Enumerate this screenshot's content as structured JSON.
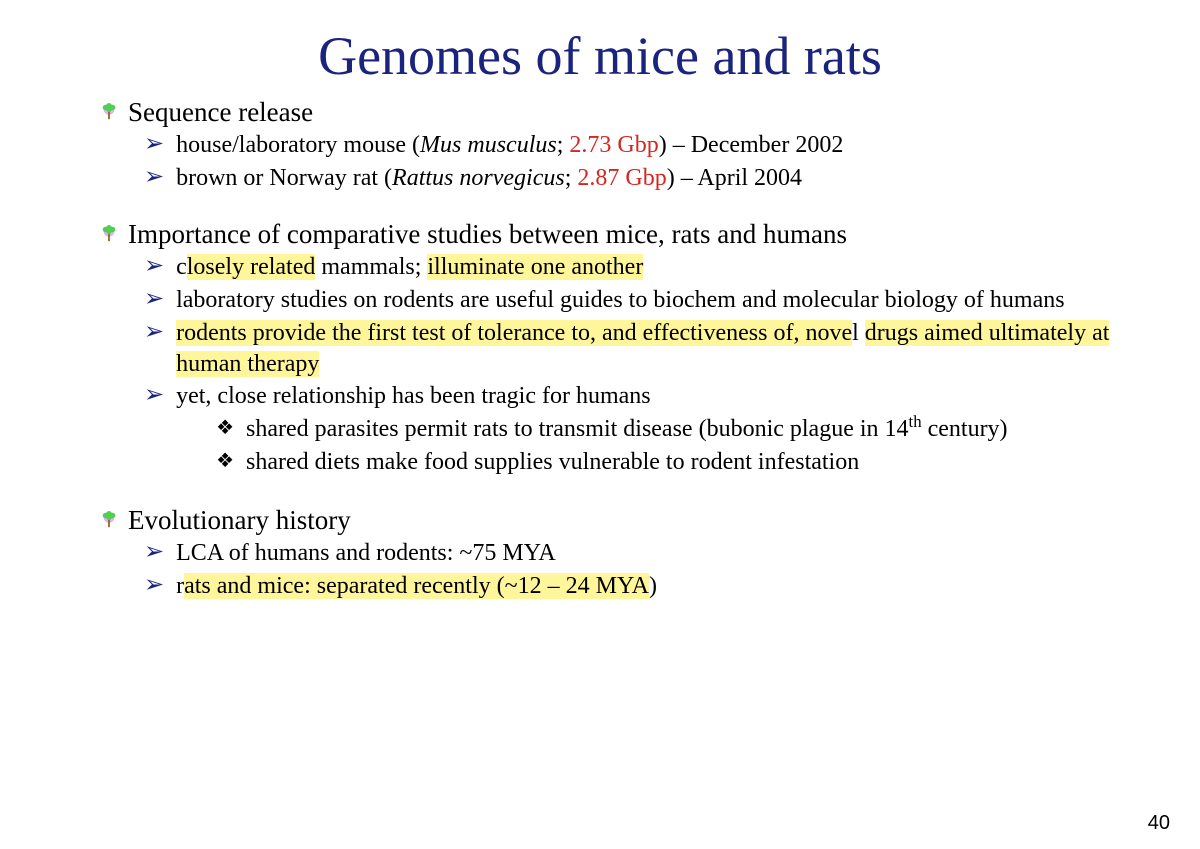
{
  "colors": {
    "title": "#1a237e",
    "chevron": "#1a237e",
    "bullet_top": "#4fd04f",
    "bullet_glow": "#c080ff",
    "bullet_stem": "#a06020",
    "red": "#d7261f",
    "highlight": "#fff59a",
    "background": "#ffffff"
  },
  "typography": {
    "title_fontsize": 54,
    "heading_fontsize": 27,
    "body_fontsize": 24,
    "page_num_fontsize": 20,
    "font_family": "Comic Sans MS"
  },
  "title": "Genomes of mice and rats",
  "sections": [
    {
      "heading": "Sequence release",
      "items": [
        {
          "kind": "line",
          "segments": [
            {
              "t": "house/laboratory mouse ("
            },
            {
              "t": "Mus musculus",
              "italic": true
            },
            {
              "t": "; "
            },
            {
              "t": "2.73 Gbp",
              "red": true
            },
            {
              "t": ") – December 2002"
            }
          ]
        },
        {
          "kind": "line",
          "segments": [
            {
              "t": "brown or Norway rat ("
            },
            {
              "t": "Rattus norvegicus",
              "italic": true
            },
            {
              "t": "; "
            },
            {
              "t": "2.87 Gbp",
              "red": true
            },
            {
              "t": ") – April 2004"
            }
          ]
        }
      ]
    },
    {
      "heading": "Importance of comparative studies between mice, rats and humans",
      "items": [
        {
          "kind": "line",
          "segments": [
            {
              "t": "c"
            },
            {
              "t": "losely related",
              "hl": true
            },
            {
              "t": " mammals; "
            },
            {
              "t": "illuminate one another",
              "hl": true
            }
          ]
        },
        {
          "kind": "line",
          "segments": [
            {
              "t": "laboratory studies on rodents are useful guides to biochem and molecular biology of humans"
            }
          ]
        },
        {
          "kind": "line",
          "segments": [
            {
              "t": "rodents provide the first test of tolerance to, and effectiveness of, nove",
              "hl": true
            },
            {
              "t": "l "
            },
            {
              "t": "drugs aimed ultimately at human therapy",
              "hl": true
            }
          ]
        },
        {
          "kind": "line_with_sub",
          "segments": [
            {
              "t": "yet, close relationship has been tragic for humans"
            }
          ],
          "sub": [
            {
              "segments": [
                {
                  "t": "shared parasites permit rats to transmit disease (bubonic plague in 14"
                },
                {
                  "t": "th",
                  "sup": true
                },
                {
                  "t": " century)"
                }
              ]
            },
            {
              "segments": [
                {
                  "t": "shared diets make food supplies vulnerable to rodent infestation"
                }
              ]
            }
          ]
        }
      ]
    },
    {
      "heading": "Evolutionary history",
      "items": [
        {
          "kind": "line",
          "segments": [
            {
              "t": "LCA of humans and rodents: ~75 MYA"
            }
          ]
        },
        {
          "kind": "line",
          "segments": [
            {
              "t": "r"
            },
            {
              "t": "ats and mice: separated recently (~12 – 24 MYA",
              "hl": true
            },
            {
              "t": ")"
            }
          ]
        }
      ]
    }
  ],
  "page_number": "40"
}
